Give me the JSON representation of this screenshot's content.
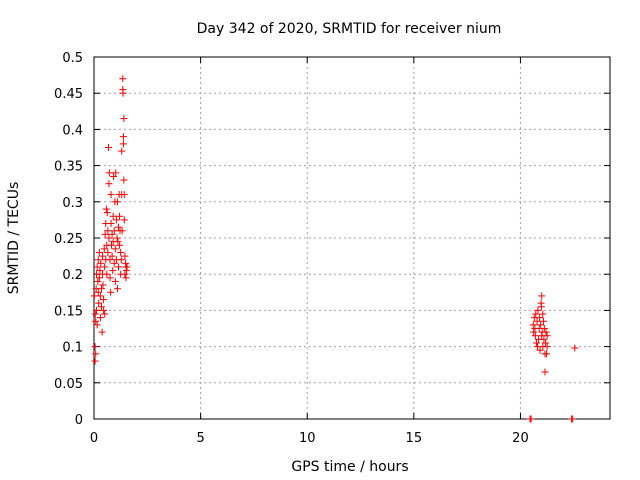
{
  "chart_data": {
    "type": "scatter",
    "title": "Day 342 of 2020, SRMTID for receiver nium",
    "xlabel": "GPS time / hours",
    "ylabel": "SRMTID / TECUs",
    "xlim": [
      0,
      24.2
    ],
    "ylim": [
      0,
      0.5
    ],
    "xticks": [
      0,
      5,
      10,
      15,
      20
    ],
    "xtick_labels": [
      "0",
      "5",
      "10",
      "15",
      "20"
    ],
    "yticks": [
      0,
      0.05,
      0.1,
      0.15,
      0.2,
      0.25,
      0.3,
      0.35,
      0.4,
      0.45,
      0.5
    ],
    "ytick_labels": [
      "0",
      "0.05",
      "0.1",
      "0.15",
      "0.2",
      "0.25",
      "0.3",
      "0.35",
      "0.4",
      "0.45",
      "0.5"
    ],
    "grid": true,
    "marker": "+",
    "color": "#ff0000",
    "series": [
      {
        "name": "SRMTID",
        "points": [
          [
            0.02,
            0.17
          ],
          [
            0.05,
            0.08
          ],
          [
            0.05,
            0.1
          ],
          [
            0.06,
            0.145
          ],
          [
            0.08,
            0.135
          ],
          [
            0.08,
            0.09
          ],
          [
            0.1,
            0.18
          ],
          [
            0.12,
            0.2
          ],
          [
            0.12,
            0.15
          ],
          [
            0.15,
            0.13
          ],
          [
            0.15,
            0.21
          ],
          [
            0.18,
            0.19
          ],
          [
            0.2,
            0.22
          ],
          [
            0.2,
            0.175
          ],
          [
            0.22,
            0.16
          ],
          [
            0.25,
            0.23
          ],
          [
            0.25,
            0.195
          ],
          [
            0.28,
            0.205
          ],
          [
            0.3,
            0.17
          ],
          [
            0.3,
            0.14
          ],
          [
            0.32,
            0.215
          ],
          [
            0.35,
            0.18
          ],
          [
            0.35,
            0.155
          ],
          [
            0.38,
            0.12
          ],
          [
            0.4,
            0.225
          ],
          [
            0.4,
            0.2
          ],
          [
            0.42,
            0.185
          ],
          [
            0.45,
            0.15
          ],
          [
            0.45,
            0.165
          ],
          [
            0.48,
            0.235
          ],
          [
            0.5,
            0.21
          ],
          [
            0.5,
            0.145
          ],
          [
            0.52,
            0.255
          ],
          [
            0.55,
            0.22
          ],
          [
            0.55,
            0.27
          ],
          [
            0.58,
            0.29
          ],
          [
            0.6,
            0.24
          ],
          [
            0.6,
            0.2
          ],
          [
            0.62,
            0.285
          ],
          [
            0.65,
            0.26
          ],
          [
            0.65,
            0.23
          ],
          [
            0.68,
            0.375
          ],
          [
            0.7,
            0.25
          ],
          [
            0.7,
            0.325
          ],
          [
            0.72,
            0.34
          ],
          [
            0.75,
            0.22
          ],
          [
            0.75,
            0.195
          ],
          [
            0.78,
            0.175
          ],
          [
            0.8,
            0.31
          ],
          [
            0.8,
            0.27
          ],
          [
            0.82,
            0.24
          ],
          [
            0.85,
            0.255
          ],
          [
            0.85,
            0.225
          ],
          [
            0.88,
            0.205
          ],
          [
            0.9,
            0.28
          ],
          [
            0.9,
            0.245
          ],
          [
            0.92,
            0.335
          ],
          [
            0.95,
            0.26
          ],
          [
            0.95,
            0.215
          ],
          [
            0.98,
            0.3
          ],
          [
            1.0,
            0.235
          ],
          [
            1.0,
            0.19
          ],
          [
            1.02,
            0.34
          ],
          [
            1.05,
            0.275
          ],
          [
            1.05,
            0.22
          ],
          [
            1.08,
            0.25
          ],
          [
            1.1,
            0.3
          ],
          [
            1.1,
            0.18
          ],
          [
            1.12,
            0.245
          ],
          [
            1.15,
            0.265
          ],
          [
            1.15,
            0.21
          ],
          [
            1.18,
            0.31
          ],
          [
            1.2,
            0.28
          ],
          [
            1.2,
            0.24
          ],
          [
            1.22,
            0.26
          ],
          [
            1.25,
            0.23
          ],
          [
            1.25,
            0.2
          ],
          [
            1.28,
            0.22
          ],
          [
            1.3,
            0.31
          ],
          [
            1.3,
            0.37
          ],
          [
            1.32,
            0.26
          ],
          [
            1.35,
            0.47
          ],
          [
            1.35,
            0.455
          ],
          [
            1.36,
            0.45
          ],
          [
            1.38,
            0.39
          ],
          [
            1.38,
            0.38
          ],
          [
            1.4,
            0.415
          ],
          [
            1.4,
            0.33
          ],
          [
            1.42,
            0.31
          ],
          [
            1.42,
            0.275
          ],
          [
            1.45,
            0.225
          ],
          [
            1.45,
            0.2
          ],
          [
            1.48,
            0.215
          ],
          [
            1.5,
            0.21
          ],
          [
            1.5,
            0.195
          ],
          [
            1.52,
            0.205
          ],
          [
            1.55,
            0.21
          ],
          [
            20.45,
            0.0
          ],
          [
            20.5,
            0.0
          ],
          [
            20.6,
            0.13
          ],
          [
            20.62,
            0.12
          ],
          [
            20.65,
            0.14
          ],
          [
            20.68,
            0.125
          ],
          [
            20.7,
            0.115
          ],
          [
            20.72,
            0.145
          ],
          [
            20.75,
            0.105
          ],
          [
            20.78,
            0.135
          ],
          [
            20.8,
            0.1
          ],
          [
            20.82,
            0.15
          ],
          [
            20.85,
            0.11
          ],
          [
            20.88,
            0.125
          ],
          [
            20.9,
            0.14
          ],
          [
            20.92,
            0.095
          ],
          [
            20.95,
            0.13
          ],
          [
            20.97,
            0.16
          ],
          [
            20.98,
            0.155
          ],
          [
            21.0,
            0.17
          ],
          [
            21.0,
            0.115
          ],
          [
            21.02,
            0.12
          ],
          [
            21.05,
            0.145
          ],
          [
            21.05,
            0.1
          ],
          [
            21.08,
            0.135
          ],
          [
            21.1,
            0.11
          ],
          [
            21.12,
            0.125
          ],
          [
            21.15,
            0.09
          ],
          [
            21.15,
            0.065
          ],
          [
            21.18,
            0.105
          ],
          [
            21.2,
            0.12
          ],
          [
            21.22,
            0.09
          ],
          [
            21.25,
            0.115
          ],
          [
            21.25,
            0.1
          ],
          [
            22.4,
            0.0
          ],
          [
            22.45,
            0.0
          ],
          [
            22.55,
            0.098
          ]
        ]
      }
    ]
  }
}
